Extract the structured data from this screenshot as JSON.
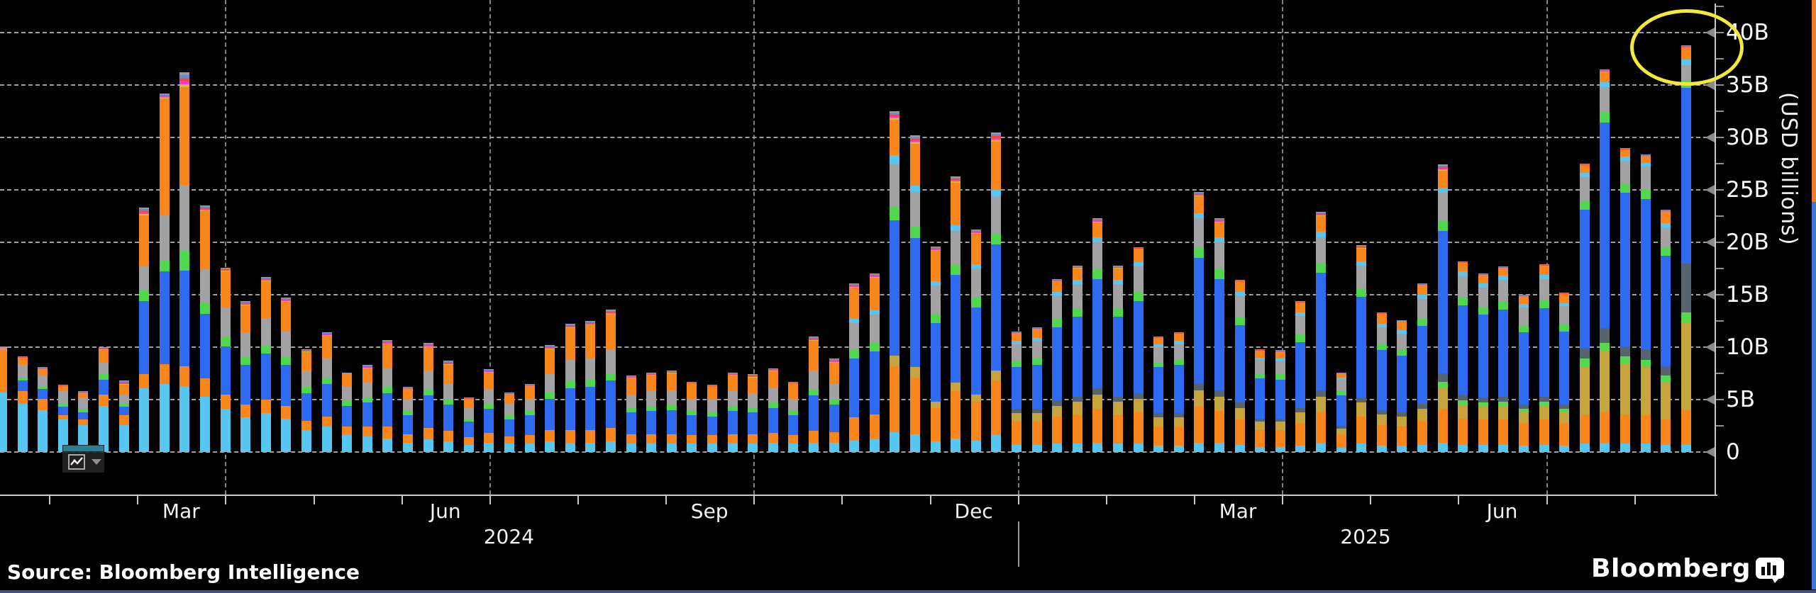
{
  "chart_data": {
    "type": "bar",
    "stacked": true,
    "title": "",
    "ylabel": "(USD billions)",
    "grid": "dashed horizontal every 5B, dashed vertical at quarter boundaries",
    "legend_position": "none",
    "y_axis": {
      "side": "right",
      "tick_labels": [
        "40B",
        "35B",
        "30B",
        "25B",
        "20B",
        "15B",
        "10B",
        "5B",
        "0"
      ],
      "tick_values": [
        40,
        35,
        30,
        25,
        20,
        15,
        10,
        5,
        0
      ],
      "minor_tick_step": 2.5,
      "ylim": [
        0,
        42.5
      ]
    },
    "x_axis": {
      "start": "Jan 2024",
      "end": "Aug 2025",
      "frequency": "weekly",
      "months": [
        {
          "label": "Mar",
          "monthIndex": 2
        },
        {
          "label": "Jun",
          "monthIndex": 5
        },
        {
          "label": "Sep",
          "monthIndex": 8
        },
        {
          "label": "Dec",
          "monthIndex": 11
        },
        {
          "label": "Mar",
          "monthIndex": 14
        },
        {
          "label": "Jun",
          "monthIndex": 17
        }
      ],
      "years": [
        {
          "label": "2024",
          "spanMonths": [
            0,
            12
          ]
        },
        {
          "label": "2025",
          "spanMonths": [
            12,
            19.9
          ]
        }
      ],
      "quarter_gridline_months": [
        3,
        6,
        9,
        12,
        15,
        18
      ]
    },
    "series": [
      {
        "name": "segment-sky",
        "color": "#57C7F2"
      },
      {
        "name": "segment-orange-lower",
        "color": "#F8861B"
      },
      {
        "name": "segment-tan",
        "color": "#C8A43C"
      },
      {
        "name": "segment-lime",
        "color": "#55D94E"
      },
      {
        "name": "segment-slate",
        "color": "#55646D"
      },
      {
        "name": "segment-blue",
        "color": "#2D6BF2"
      },
      {
        "name": "segment-green",
        "color": "#4FD84E"
      },
      {
        "name": "segment-gray",
        "color": "#A2A2A4"
      },
      {
        "name": "segment-sky-thin",
        "color": "#57C7F2"
      },
      {
        "name": "segment-orange-upper",
        "color": "#F8861B"
      },
      {
        "name": "segment-caps",
        "color": "caps-gradient"
      }
    ],
    "caps_colors_bottom_to_top": [
      "#D8B93F",
      "#FF35CC",
      "#FF4633",
      "#5B8FD4",
      "#9A9A9A"
    ],
    "bars_unit": "USD billions",
    "bars": [
      [
        5.7,
        4.0,
        0,
        0,
        0,
        0,
        0,
        0.2,
        0,
        0,
        0.2
      ],
      [
        4.6,
        1.2,
        0,
        0,
        0,
        1.0,
        0.3,
        1.2,
        0,
        0.6,
        0.2
      ],
      [
        4.0,
        1.1,
        0,
        0,
        0,
        0.9,
        0.3,
        1.0,
        0,
        0.6,
        0.2
      ],
      [
        3.1,
        0.4,
        0,
        0,
        0,
        0.8,
        0.3,
        1.2,
        0,
        0.4,
        0.2
      ],
      [
        2.6,
        0.5,
        0,
        0,
        0,
        0.7,
        0.3,
        1.1,
        0,
        0.4,
        0.2
      ],
      [
        4.4,
        1.1,
        0,
        0,
        0,
        1.4,
        0.5,
        1.1,
        0,
        1.2,
        0.3
      ],
      [
        2.6,
        0.9,
        0,
        0,
        0,
        0.8,
        0.3,
        0.9,
        0,
        0.9,
        0.4
      ],
      [
        6.1,
        1.3,
        0,
        0,
        0,
        7.0,
        1.0,
        2.3,
        0,
        4.9,
        0.7
      ],
      [
        6.5,
        1.9,
        0,
        0,
        0,
        8.8,
        1.1,
        4.3,
        0,
        11.1,
        0.5
      ],
      [
        6.3,
        1.9,
        0,
        0,
        0,
        9.1,
        1.9,
        6.3,
        0,
        9.3,
        1.4
      ],
      [
        5.3,
        1.7,
        0,
        0,
        0,
        6.2,
        1.0,
        3.2,
        0,
        5.6,
        0.5
      ],
      [
        4.1,
        1.4,
        0,
        0,
        0,
        4.6,
        0.9,
        2.8,
        0,
        3.4,
        0.4
      ],
      [
        3.3,
        1.2,
        0,
        0,
        0,
        3.8,
        0.8,
        2.3,
        0,
        2.6,
        0.4
      ],
      [
        3.7,
        1.3,
        0,
        0,
        0,
        4.4,
        0.8,
        2.6,
        0,
        3.5,
        0.4
      ],
      [
        3.2,
        1.2,
        0,
        0,
        0,
        3.9,
        0.8,
        2.4,
        0,
        2.8,
        0.4
      ],
      [
        2.1,
        0.9,
        0,
        0,
        0,
        2.6,
        0.6,
        1.6,
        0,
        1.7,
        0.3
      ],
      [
        2.4,
        1.0,
        0,
        0,
        0,
        3.1,
        0.6,
        1.9,
        0,
        2.1,
        0.3
      ],
      [
        1.6,
        0.8,
        0,
        0,
        0,
        2.0,
        0.5,
        1.3,
        0,
        1.2,
        0.2
      ],
      [
        1.5,
        0.9,
        0,
        0,
        0,
        2.3,
        0.5,
        1.4,
        0,
        1.4,
        0.3
      ],
      [
        1.3,
        1.1,
        0,
        0,
        0,
        3.2,
        0.6,
        1.8,
        0,
        2.3,
        0.4
      ],
      [
        0.9,
        0.8,
        0,
        0,
        0,
        1.8,
        0.4,
        1.1,
        0,
        1.0,
        0.2
      ],
      [
        1.2,
        1.1,
        0,
        0,
        0,
        3.1,
        0.6,
        1.8,
        0,
        2.2,
        0.4
      ],
      [
        1.0,
        1.0,
        0,
        0,
        0,
        2.5,
        0.5,
        1.5,
        0,
        1.8,
        0.4
      ],
      [
        0.7,
        0.7,
        0,
        0,
        0,
        1.5,
        0.3,
        1.0,
        0,
        0.8,
        0.2
      ],
      [
        0.9,
        0.9,
        0,
        0,
        0,
        2.3,
        0.5,
        1.4,
        0,
        1.6,
        0.3
      ],
      [
        0.8,
        0.7,
        0,
        0,
        0,
        1.6,
        0.4,
        1.1,
        0,
        0.9,
        0.2
      ],
      [
        0.8,
        0.8,
        0,
        0,
        0,
        1.9,
        0.4,
        1.2,
        0,
        1.2,
        0.2
      ],
      [
        1.0,
        1.1,
        0,
        0,
        0,
        3.0,
        0.6,
        1.7,
        0,
        2.4,
        0.4
      ],
      [
        0.9,
        1.2,
        0,
        0,
        0,
        4.0,
        0.7,
        2.0,
        0,
        3.0,
        0.4
      ],
      [
        0.9,
        1.2,
        0,
        0,
        0,
        4.1,
        0.7,
        2.0,
        0,
        3.2,
        0.4
      ],
      [
        1.0,
        1.3,
        0,
        0,
        0,
        4.5,
        0.7,
        2.2,
        0,
        3.4,
        0.5
      ],
      [
        0.8,
        0.9,
        0,
        0,
        0,
        2.1,
        0.4,
        1.3,
        0,
        1.5,
        0.3
      ],
      [
        0.8,
        0.9,
        0,
        0,
        0,
        2.2,
        0.5,
        1.4,
        0,
        1.5,
        0.3
      ],
      [
        0.8,
        0.9,
        0,
        0,
        0,
        2.3,
        0.5,
        1.4,
        0,
        1.6,
        0.3
      ],
      [
        0.8,
        0.8,
        0,
        0,
        0,
        1.9,
        0.4,
        1.2,
        0,
        1.4,
        0.2
      ],
      [
        0.8,
        0.8,
        0,
        0,
        0,
        1.8,
        0.4,
        1.2,
        0,
        1.2,
        0.2
      ],
      [
        0.8,
        0.9,
        0,
        0,
        0,
        2.2,
        0.5,
        1.4,
        0,
        1.5,
        0.3
      ],
      [
        0.8,
        0.9,
        0,
        0,
        0,
        2.1,
        0.4,
        1.4,
        0,
        1.5,
        0.3
      ],
      [
        0.9,
        0.9,
        0,
        0,
        0,
        2.4,
        0.5,
        1.4,
        0,
        1.6,
        0.3
      ],
      [
        0.8,
        0.8,
        0,
        0,
        0,
        1.9,
        0.4,
        1.2,
        0,
        1.4,
        0.2
      ],
      [
        0.9,
        1.1,
        0,
        0,
        0,
        3.4,
        0.6,
        1.8,
        0,
        2.8,
        0.4
      ],
      [
        0.9,
        1.0,
        0,
        0,
        0,
        2.6,
        0.5,
        1.5,
        0,
        2.0,
        0.4
      ],
      [
        1.1,
        2.2,
        0,
        0,
        0,
        5.6,
        0.8,
        2.6,
        0.4,
        3.0,
        0.4
      ],
      [
        1.2,
        2.4,
        0,
        0,
        0,
        6.0,
        0.8,
        2.7,
        0.4,
        3.1,
        0.4
      ],
      [
        1.9,
        6.3,
        1.0,
        0,
        0,
        12.9,
        1.3,
        4.0,
        0.9,
        3.4,
        0.8
      ],
      [
        1.7,
        5.4,
        1.0,
        0,
        0,
        12.3,
        1.1,
        3.3,
        0.6,
        4.0,
        0.8
      ],
      [
        1.0,
        3.2,
        0.6,
        0,
        0,
        7.5,
        0.9,
        2.7,
        0.4,
        2.9,
        0.4
      ],
      [
        1.3,
        4.5,
        0.8,
        0,
        0,
        10.3,
        1.0,
        3.2,
        0.5,
        4.1,
        0.6
      ],
      [
        1.1,
        3.7,
        0.7,
        0,
        0,
        8.3,
        0.9,
        2.8,
        0.4,
        2.9,
        0.4
      ],
      [
        1.6,
        5.2,
        1.0,
        0,
        0,
        12.0,
        1.1,
        3.5,
        0.6,
        4.6,
        0.9
      ],
      [
        0.7,
        2.2,
        0.8,
        0,
        0.4,
        4.0,
        0.6,
        1.6,
        0.3,
        0.7,
        0.2
      ],
      [
        0.7,
        2.2,
        0.8,
        0,
        0.4,
        4.2,
        0.6,
        1.7,
        0.3,
        0.8,
        0.2
      ],
      [
        0.8,
        2.6,
        1.0,
        0,
        0.5,
        7.0,
        0.8,
        2.2,
        0.4,
        1.0,
        0.2
      ],
      [
        0.8,
        2.8,
        1.2,
        0,
        0.5,
        7.6,
        0.8,
        2.3,
        0.4,
        1.1,
        0.3
      ],
      [
        0.9,
        3.2,
        1.4,
        0,
        0.6,
        10.4,
        0.9,
        2.6,
        0.5,
        1.4,
        0.4
      ],
      [
        0.8,
        2.8,
        1.2,
        0,
        0.5,
        7.6,
        0.8,
        2.3,
        0.4,
        1.1,
        0.3
      ],
      [
        0.8,
        3.0,
        1.3,
        0,
        0.5,
        8.8,
        0.9,
        2.4,
        0.4,
        1.2,
        0.2
      ],
      [
        0.6,
        1.8,
        0.9,
        0,
        0.4,
        4.4,
        0.5,
        1.4,
        0.3,
        0.5,
        0.2
      ],
      [
        0.6,
        1.8,
        0.9,
        0,
        0.4,
        4.6,
        0.5,
        1.5,
        0.3,
        0.6,
        0.2
      ],
      [
        0.9,
        3.4,
        1.6,
        0,
        0.6,
        12.0,
        1.0,
        2.8,
        0.5,
        1.6,
        0.4
      ],
      [
        0.9,
        3.0,
        1.4,
        0,
        0.6,
        10.6,
        0.9,
        2.6,
        0.5,
        1.4,
        0.4
      ],
      [
        0.7,
        2.4,
        1.1,
        0,
        0.5,
        7.4,
        0.8,
        2.0,
        0.4,
        0.9,
        0.2
      ],
      [
        0.5,
        1.6,
        0.8,
        0,
        0.3,
        3.8,
        0.5,
        1.3,
        0.2,
        0.6,
        0.2
      ],
      [
        0.5,
        1.6,
        0.8,
        0,
        0.3,
        3.7,
        0.5,
        1.3,
        0.2,
        0.6,
        0.2
      ],
      [
        0.6,
        2.2,
        1.0,
        0,
        0.4,
        6.3,
        0.7,
        1.8,
        0.3,
        0.9,
        0.2
      ],
      [
        0.8,
        3.0,
        1.5,
        0,
        0.6,
        11.2,
        0.9,
        2.5,
        0.5,
        1.5,
        0.4
      ],
      [
        0.4,
        1.2,
        0.6,
        0,
        0.3,
        2.9,
        0.4,
        1.1,
        0.2,
        0.4,
        0.1
      ],
      [
        0.8,
        2.6,
        1.3,
        0,
        0.5,
        9.6,
        0.8,
        2.2,
        0.4,
        1.2,
        0.3
      ],
      [
        0.6,
        2.0,
        1.0,
        0,
        0.4,
        5.7,
        0.6,
        1.6,
        0.3,
        0.9,
        0.2
      ],
      [
        0.6,
        1.9,
        0.9,
        0,
        0.4,
        5.4,
        0.6,
        1.5,
        0.3,
        0.8,
        0.2
      ],
      [
        0.7,
        2.3,
        1.1,
        0,
        0.5,
        7.4,
        0.7,
        1.9,
        0.4,
        0.9,
        0.2
      ],
      [
        0.9,
        3.2,
        2.0,
        0.6,
        0.8,
        13.6,
        1.0,
        2.6,
        0.5,
        1.6,
        0.6
      ],
      [
        0.7,
        2.5,
        1.3,
        0.4,
        0.5,
        8.6,
        0.8,
        2.0,
        0.4,
        0.8,
        0.2
      ],
      [
        0.7,
        2.4,
        1.2,
        0.4,
        0.5,
        7.9,
        0.7,
        1.9,
        0.4,
        0.7,
        0.2
      ],
      [
        0.7,
        2.4,
        1.3,
        0.4,
        0.5,
        8.3,
        0.8,
        2.0,
        0.4,
        0.7,
        0.2
      ],
      [
        0.6,
        2.1,
        1.1,
        0.3,
        0.4,
        6.9,
        0.7,
        1.7,
        0.3,
        0.7,
        0.2
      ],
      [
        0.7,
        2.4,
        1.3,
        0.4,
        0.5,
        8.4,
        0.8,
        2.0,
        0.4,
        0.8,
        0.2
      ],
      [
        0.6,
        2.1,
        1.1,
        0.3,
        0.4,
        7.0,
        0.7,
        1.7,
        0.3,
        0.8,
        0.2
      ],
      [
        0.8,
        2.8,
        4.6,
        0.7,
        1.0,
        13.2,
        0.9,
        2.2,
        0.4,
        0.7,
        0.2
      ],
      [
        0.8,
        3.0,
        5.8,
        0.8,
        1.4,
        19.6,
        1.0,
        2.4,
        0.5,
        0.9,
        0.3
      ],
      [
        0.8,
        2.8,
        4.8,
        0.7,
        1.0,
        14.6,
        0.9,
        2.2,
        0.4,
        0.6,
        0.2
      ],
      [
        0.8,
        2.7,
        4.6,
        0.7,
        1.0,
        14.3,
        0.9,
        2.2,
        0.4,
        0.6,
        0.2
      ],
      [
        0.7,
        2.4,
        3.6,
        0.6,
        0.8,
        10.6,
        0.8,
        1.9,
        0.4,
        1.1,
        0.2
      ],
      [
        0.7,
        3.3,
        8.3,
        1.0,
        4.7,
        16.7,
        0.7,
        1.5,
        0.5,
        1.1,
        0.3
      ]
    ],
    "annotation": {
      "shape": "ellipse",
      "color": "#F3E93C",
      "highlights": "final bar (~39B, week of Aug 2025)"
    }
  },
  "toolbar": {
    "chart_type_button": {
      "icon": "line-chart-icon",
      "dropdown": "chevron-down-icon"
    }
  },
  "edge_strip": {
    "top_color": "#EA7F2E",
    "bottom_color": "#3C79D6"
  },
  "footer": {
    "source": "Source: Bloomberg Intelligence",
    "brand": "Bloomberg"
  }
}
